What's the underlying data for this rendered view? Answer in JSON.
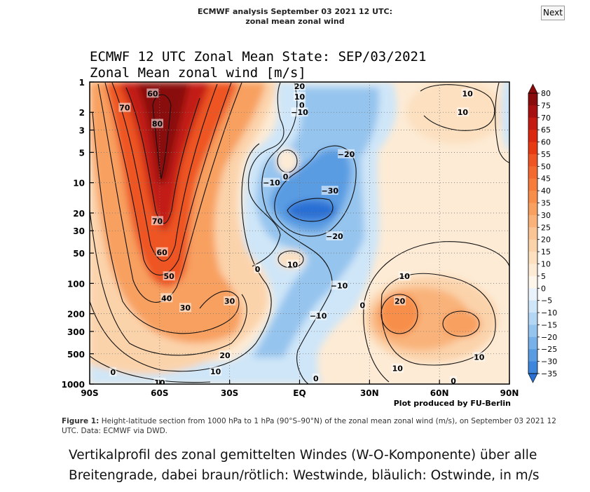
{
  "header": {
    "line1": "ECMWF analysis September 03 2021 12 UTC:",
    "line2": "zonal mean zonal wind"
  },
  "nav": {
    "next_label": "Next"
  },
  "chart_data": {
    "type": "heatmap",
    "title": "ECMWF 12 UTC Zonal Mean State: SEP/03/2021",
    "subtitle": "Zonal Mean zonal wind [m/s]",
    "x_tick_labels": [
      "90S",
      "60S",
      "30S",
      "EQ",
      "30N",
      "60N",
      "90N"
    ],
    "x_ticks_lat": [
      -90,
      -60,
      -30,
      0,
      30,
      60,
      90
    ],
    "xlim": [
      -90,
      90
    ],
    "y_tick_labels": [
      "1",
      "2",
      "3",
      "5",
      "10",
      "20",
      "30",
      "50",
      "100",
      "200",
      "300",
      "500",
      "1000"
    ],
    "y_ticks_hpa": [
      1,
      2,
      3,
      5,
      10,
      20,
      30,
      50,
      100,
      200,
      300,
      500,
      1000
    ],
    "ylim_hpa": [
      1000,
      1
    ],
    "y_scale": "log",
    "grid": true,
    "credit": "Plot produced by FU-Berlin",
    "colorbar": {
      "labels": [
        "80",
        "75",
        "70",
        "65",
        "60",
        "55",
        "50",
        "45",
        "40",
        "35",
        "30",
        "25",
        "20",
        "15",
        "10",
        "5",
        "0",
        "−5",
        "−10",
        "−15",
        "−20",
        "−25",
        "−30",
        "−35"
      ],
      "levels": [
        80,
        75,
        70,
        65,
        60,
        55,
        50,
        45,
        40,
        35,
        30,
        25,
        20,
        15,
        10,
        5,
        0,
        -5,
        -10,
        -15,
        -20,
        -25,
        -30,
        -35
      ],
      "colors": [
        "#8a0b0b",
        "#a71010",
        "#c31a12",
        "#d9280f",
        "#e63b12",
        "#ee5522",
        "#f26a30",
        "#f57c3a",
        "#f78e4a",
        "#f8a060",
        "#f9b37a",
        "#fac494",
        "#fbd3ab",
        "#fce0c0",
        "#fdebd5",
        "#fef6ea",
        "#eaf3fb",
        "#cfe6f8",
        "#b3d6f4",
        "#95c4ee",
        "#78b1e8",
        "#5a9ce2",
        "#3d86dc",
        "#2a70d4"
      ]
    },
    "contour_labels": [
      {
        "text": "60",
        "lat": -63,
        "p": 1.3
      },
      {
        "text": "70",
        "lat": -75,
        "p": 1.8
      },
      {
        "text": "80",
        "lat": -61,
        "p": 2.6
      },
      {
        "text": "70",
        "lat": -61,
        "p": 24
      },
      {
        "text": "60",
        "lat": -59,
        "p": 49
      },
      {
        "text": "50",
        "lat": -56,
        "p": 85
      },
      {
        "text": "40",
        "lat": -57,
        "p": 140
      },
      {
        "text": "30",
        "lat": -49,
        "p": 175
      },
      {
        "text": "30",
        "lat": -30,
        "p": 150
      },
      {
        "text": "20",
        "lat": -32,
        "p": 520
      },
      {
        "text": "10",
        "lat": -36,
        "p": 750
      },
      {
        "text": "0",
        "lat": -80,
        "p": 760
      },
      {
        "text": "10",
        "lat": -60,
        "p": 970
      },
      {
        "text": "20",
        "lat": 0,
        "p": 1.1
      },
      {
        "text": "10",
        "lat": 0,
        "p": 1.4
      },
      {
        "text": "0",
        "lat": 1,
        "p": 1.7
      },
      {
        "text": "−10",
        "lat": 0,
        "p": 2.0
      },
      {
        "text": "0",
        "lat": -6,
        "p": 8.7
      },
      {
        "text": "−10",
        "lat": -12,
        "p": 10
      },
      {
        "text": "−20",
        "lat": 20,
        "p": 5.2
      },
      {
        "text": "−30",
        "lat": 13,
        "p": 12
      },
      {
        "text": "−20",
        "lat": 15,
        "p": 34
      },
      {
        "text": "0",
        "lat": -18,
        "p": 72
      },
      {
        "text": "10",
        "lat": -3,
        "p": 65
      },
      {
        "text": "−10",
        "lat": 17,
        "p": 105
      },
      {
        "text": "−10",
        "lat": 8,
        "p": 210
      },
      {
        "text": "0",
        "lat": 27,
        "p": 165
      },
      {
        "text": "0",
        "lat": 7,
        "p": 880
      },
      {
        "text": "10",
        "lat": 45,
        "p": 85
      },
      {
        "text": "20",
        "lat": 43,
        "p": 150
      },
      {
        "text": "10",
        "lat": 42,
        "p": 700
      },
      {
        "text": "10",
        "lat": 77,
        "p": 540
      },
      {
        "text": "0",
        "lat": 66,
        "p": 930
      },
      {
        "text": "10",
        "lat": 72,
        "p": 1.3
      },
      {
        "text": "10",
        "lat": 70,
        "p": 2.0
      }
    ]
  },
  "caption": {
    "label": "Figure 1:",
    "text": "Height-latitude section from 1000 hPa to 1 hPa (90°S–90°N) of the zonal mean zonal wind (m/s), on September 03 2021 12 UTC. Data: ECMWF via DWD."
  },
  "german_caption": "Vertikalprofil des zonal gemittelten Windes (W-O-Komponente) über alle Breitengrade, dabei braun/rötlich: Westwinde, bläulich: Ostwinde, in m/s"
}
